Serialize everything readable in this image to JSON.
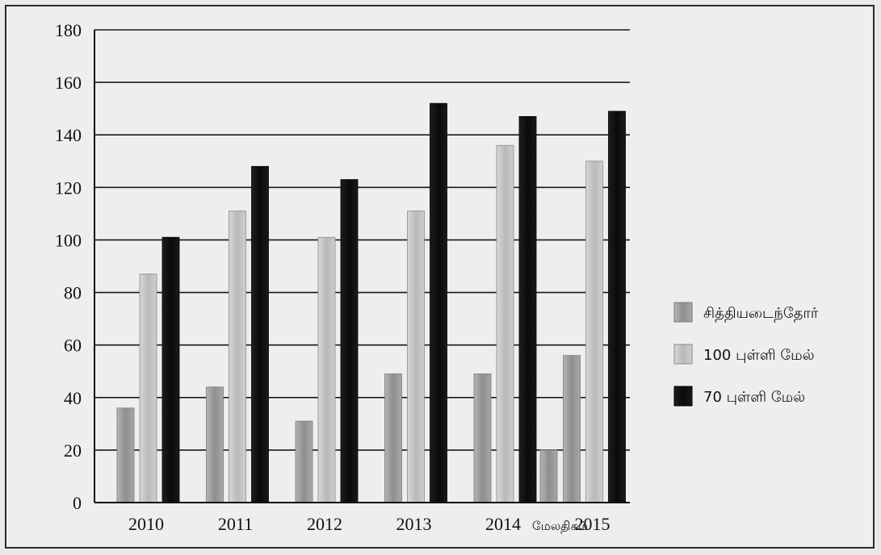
{
  "chart_data": {
    "type": "bar",
    "categories": [
      "2010",
      "2011",
      "2012",
      "2013",
      "2014",
      "2015"
    ],
    "series": [
      {
        "name": "சித்தியடைந்தோர்",
        "values": [
          36,
          44,
          31,
          49,
          49,
          56
        ],
        "color": "#9a9a9a"
      },
      {
        "name": "100 புள்ளி மேல்",
        "values": [
          87,
          111,
          101,
          111,
          136,
          130
        ],
        "color": "#c4c4c4"
      },
      {
        "name": "70 புள்ளி மேல்",
        "values": [
          101,
          128,
          123,
          152,
          147,
          149
        ],
        "color": "#111111"
      }
    ],
    "extra_bars": [
      {
        "category": "2014",
        "label": "மேலதிகம்",
        "value": 20,
        "color": "#9a9a9a"
      }
    ],
    "ylim": [
      0,
      180
    ],
    "yticks": [
      0,
      20,
      40,
      60,
      80,
      100,
      120,
      140,
      160,
      180
    ],
    "grid": true,
    "legend_position": "right",
    "title": "",
    "xlabel": "",
    "ylabel": ""
  }
}
